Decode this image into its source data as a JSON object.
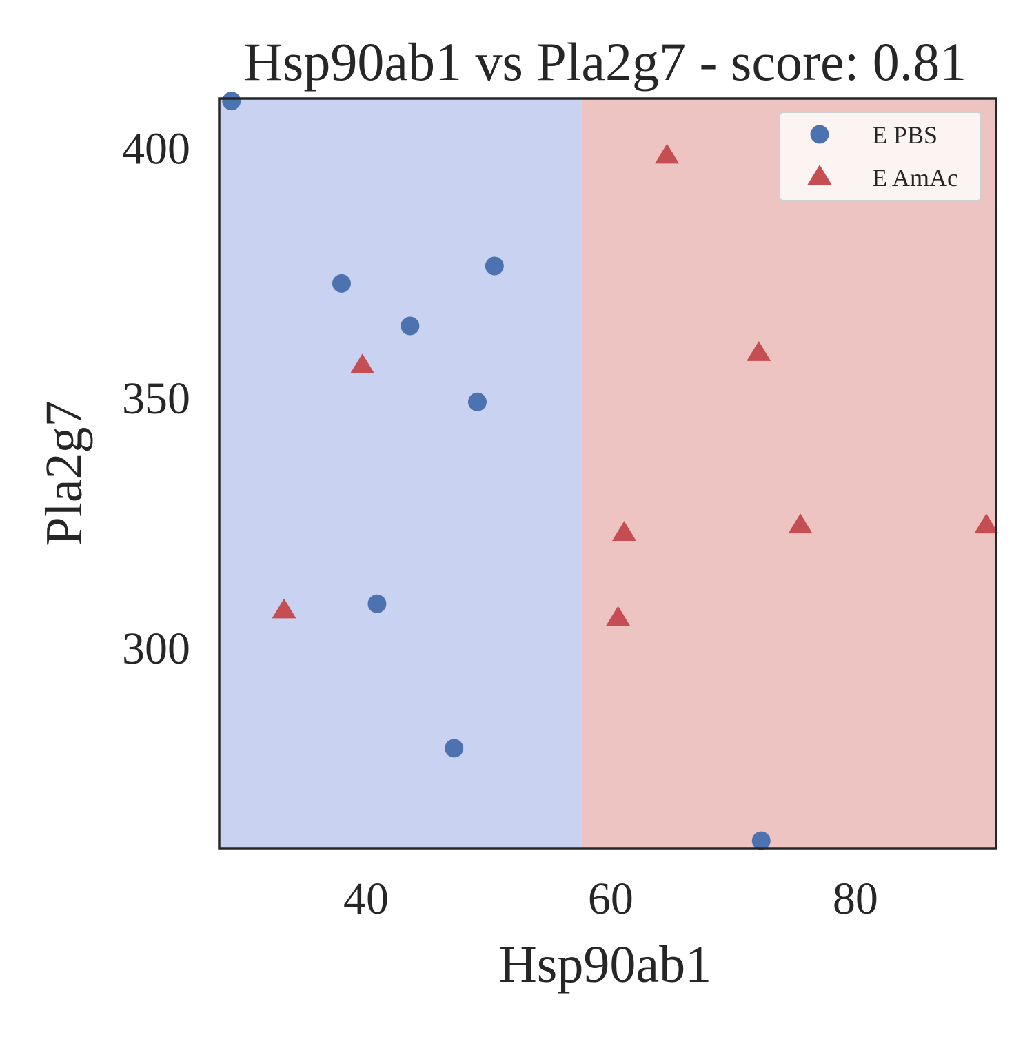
{
  "chart_data": {
    "type": "scatter",
    "title": "Hsp90ab1 vs Pla2g7 - score: 0.81",
    "xlabel": "Hsp90ab1",
    "ylabel": "Pla2g7",
    "xlim": [
      28,
      91.5
    ],
    "ylim": [
      260,
      410
    ],
    "xticks": [
      40,
      60,
      80
    ],
    "yticks": [
      300,
      350,
      400
    ],
    "x_tick_labels": [
      "40",
      "60",
      "80"
    ],
    "y_tick_labels": [
      "300",
      "350",
      "400"
    ],
    "grid": false,
    "legend_position": "upper right",
    "decision_regions": [
      {
        "class": "E PBS",
        "x_range": [
          28,
          57.6
        ],
        "color": "#c9d2f1"
      },
      {
        "class": "E AmAc",
        "x_range": [
          57.6,
          91.5
        ],
        "color": "#eec4c3"
      }
    ],
    "series": [
      {
        "name": "E PBS",
        "marker": "circle",
        "color": "#4c72b0",
        "points": [
          {
            "x": 29.0,
            "y": 409.5
          },
          {
            "x": 38.0,
            "y": 373.0
          },
          {
            "x": 50.5,
            "y": 376.5
          },
          {
            "x": 43.6,
            "y": 364.5
          },
          {
            "x": 49.1,
            "y": 349.3
          },
          {
            "x": 40.9,
            "y": 308.9
          },
          {
            "x": 47.2,
            "y": 280.0
          },
          {
            "x": 72.3,
            "y": 261.5
          }
        ]
      },
      {
        "name": "E AmAc",
        "marker": "triangle",
        "color": "#c44e52",
        "points": [
          {
            "x": 64.6,
            "y": 398.5
          },
          {
            "x": 39.7,
            "y": 356.5
          },
          {
            "x": 72.1,
            "y": 359.0
          },
          {
            "x": 33.3,
            "y": 307.5
          },
          {
            "x": 61.1,
            "y": 323.0
          },
          {
            "x": 75.5,
            "y": 324.5
          },
          {
            "x": 90.7,
            "y": 324.5
          },
          {
            "x": 60.6,
            "y": 306.0
          }
        ]
      }
    ]
  }
}
